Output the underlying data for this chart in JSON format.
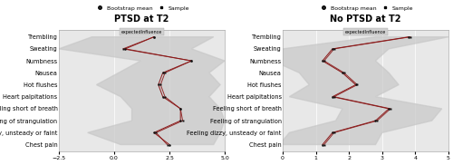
{
  "categories": [
    "Trembling",
    "Sweating",
    "Numbness",
    "Nausea",
    "Hot flushes",
    "Heart palpitations",
    "Feeling short of breath",
    "Feeling of strangulation",
    "Feeling dizzy, unsteady or faint",
    "Chest pain"
  ],
  "ptsd": {
    "title": "PTSD at T2",
    "sample": [
      1.8,
      0.4,
      3.5,
      2.3,
      2.1,
      2.3,
      3.0,
      3.1,
      1.9,
      2.4
    ],
    "mean": [
      1.8,
      0.5,
      3.5,
      2.2,
      2.0,
      2.2,
      3.0,
      3.0,
      1.8,
      2.5
    ],
    "ci_lower": [
      -1.0,
      -2.5,
      1.2,
      0.2,
      -0.8,
      0.3,
      0.8,
      0.8,
      -1.2,
      0.3
    ],
    "ci_upper": [
      4.5,
      3.5,
      5.0,
      4.3,
      4.8,
      4.3,
      4.8,
      5.0,
      4.8,
      4.5
    ],
    "xlim": [
      -2.5,
      5.0
    ],
    "xticks": [
      -2.5,
      0.0,
      2.5,
      5.0
    ]
  },
  "noptsd": {
    "title": "No PTSD at T2",
    "sample": [
      3.85,
      1.55,
      1.25,
      1.85,
      2.25,
      1.55,
      3.25,
      2.85,
      1.55,
      1.25
    ],
    "mean": [
      3.8,
      1.5,
      1.2,
      1.8,
      2.2,
      1.5,
      3.2,
      2.8,
      1.5,
      1.2
    ],
    "ci_lower": [
      2.8,
      0.0,
      -0.3,
      0.5,
      0.8,
      0.2,
      1.8,
      1.6,
      0.2,
      -0.1
    ],
    "ci_upper": [
      5.0,
      3.2,
      2.8,
      3.2,
      3.5,
      2.8,
      4.8,
      4.5,
      3.0,
      2.8
    ],
    "xlim": [
      0,
      5
    ],
    "xticks": [
      0,
      1,
      2,
      3,
      4,
      5
    ]
  },
  "line_color": "#8B1A1A",
  "ci_color": "#C8C8C8",
  "ci_alpha": 0.7,
  "label_fontsize": 4.8,
  "title_fontsize": 7,
  "legend_fontsize": 4.5,
  "tick_fontsize": 4.5,
  "inner_label": "expectedInfluence",
  "legend_mean": "Bootstrap mean",
  "legend_sample": "Sample",
  "panel_bg": "#e8e8e8",
  "inner_label_bg": "#d0d0d0"
}
